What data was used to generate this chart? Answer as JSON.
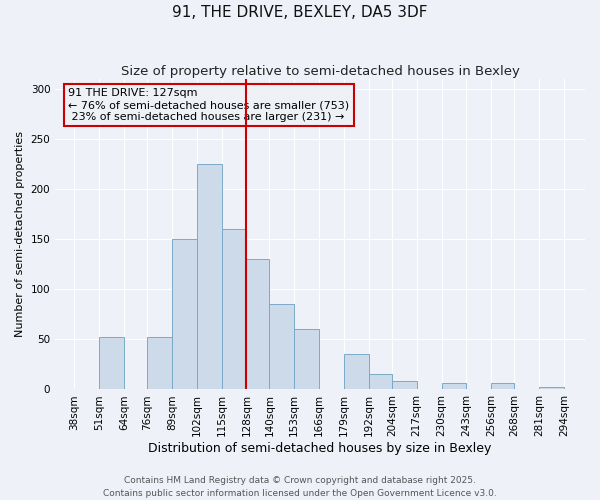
{
  "title": "91, THE DRIVE, BEXLEY, DA5 3DF",
  "subtitle": "Size of property relative to semi-detached houses in Bexley",
  "xlabel": "Distribution of semi-detached houses by size in Bexley",
  "ylabel": "Number of semi-detached properties",
  "bin_edges": [
    38,
    51,
    64,
    76,
    89,
    102,
    115,
    128,
    140,
    153,
    166,
    179,
    192,
    204,
    217,
    230,
    243,
    256,
    268,
    281,
    294
  ],
  "bar_heights": [
    0,
    52,
    0,
    52,
    150,
    225,
    160,
    130,
    85,
    60,
    0,
    35,
    15,
    8,
    0,
    6,
    0,
    6,
    0,
    2
  ],
  "bar_color": "#cddaea",
  "bar_edge_color": "#7aaac8",
  "property_line_x": 128,
  "property_line_color": "#cc0000",
  "annotation_text": "91 THE DRIVE: 127sqm\n← 76% of semi-detached houses are smaller (753)\n 23% of semi-detached houses are larger (231) →",
  "annotation_box_facecolor": "#eef2f7",
  "annotation_box_edgecolor": "#cc0000",
  "ylim": [
    0,
    310
  ],
  "yticks": [
    0,
    50,
    100,
    150,
    200,
    250,
    300
  ],
  "xlim_left": 28,
  "xlim_right": 305,
  "bg_color": "#eef2f8",
  "grid_color": "#ffffff",
  "footer_line1": "Contains HM Land Registry data © Crown copyright and database right 2025.",
  "footer_line2": "Contains public sector information licensed under the Open Government Licence v3.0.",
  "title_fontsize": 11,
  "subtitle_fontsize": 9.5,
  "xlabel_fontsize": 9,
  "ylabel_fontsize": 8,
  "annot_fontsize": 8,
  "tick_fontsize": 7.5,
  "footer_fontsize": 6.5
}
